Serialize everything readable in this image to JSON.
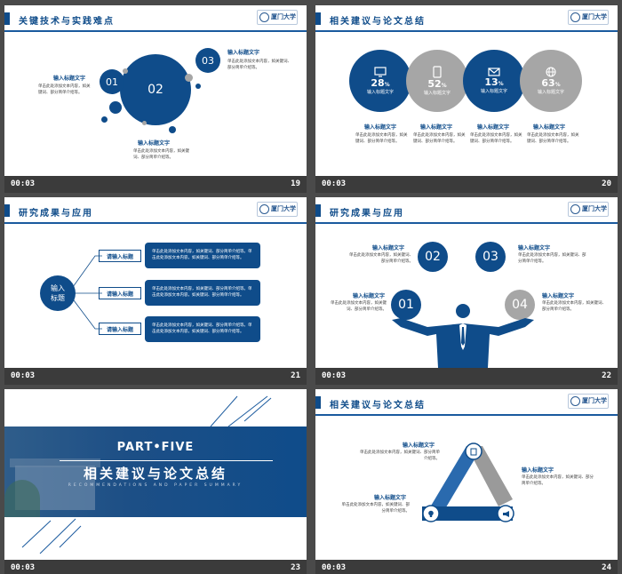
{
  "colors": {
    "primary": "#0f4c8a",
    "gray": "#a6a6a6",
    "dark_bar": "#3b3b3b"
  },
  "logo_text": "厦门大学",
  "slides": [
    {
      "title": "关键技术与实践难点",
      "time": "00:03",
      "number": "19",
      "circles": [
        "01",
        "02",
        "03"
      ],
      "labels": [
        "输入标题文字",
        "输入标题文字",
        "输入标题文字"
      ],
      "descs": [
        "单击此处添加文本内容，如关键词、部分简单介绍等。",
        "单击此处添加文本内容，如关键词、部分简单介绍等。",
        "单击此处添加文本内容，如关键词、部分简单介绍等。"
      ]
    },
    {
      "title": "相关建议与论文总结",
      "time": "00:03",
      "number": "20",
      "items": [
        {
          "icon": "monitor-icon",
          "value": "28",
          "unit": "%",
          "label": "输入标题文字",
          "caption": "输入标题文字",
          "desc": "单击此处添加文本内容，如关键词、部分简单介绍等。"
        },
        {
          "icon": "phone-icon",
          "value": "52",
          "unit": "%",
          "label": "输入标题文字",
          "caption": "输入标题文字",
          "desc": "单击此处添加文本内容，如关键词、部分简单介绍等。"
        },
        {
          "icon": "mail-icon",
          "value": "13",
          "unit": "%",
          "label": "输入标题文字",
          "caption": "输入标题文字",
          "desc": "单击此处添加文本内容，如关键词、部分简单介绍等。"
        },
        {
          "icon": "globe-icon",
          "value": "63",
          "unit": "%",
          "label": "输入标题文字",
          "caption": "输入标题文字",
          "desc": "单击此处添加文本内容，如关键词、部分简单介绍等。"
        }
      ]
    },
    {
      "title": "研究成果与应用",
      "time": "00:03",
      "number": "21",
      "center": "输入\n标题",
      "rows": [
        {
          "tag": "请输入标题",
          "text": "单击此处添加文本内容，如关键词、部分简单介绍等。单击此处添加文本内容，如关键词、部分简单介绍等。"
        },
        {
          "tag": "请输入标题",
          "text": "单击此处添加文本内容，如关键词、部分简单介绍等。单击此处添加文本内容，如关键词、部分简单介绍等。"
        },
        {
          "tag": "请输入标题",
          "text": "单击此处添加文本内容，如关键词、部分简单介绍等。单击此处添加文本内容，如关键词、部分简单介绍等。"
        }
      ]
    },
    {
      "title": "研究成果与应用",
      "time": "00:03",
      "number": "22",
      "circles": [
        "02",
        "03",
        "01",
        "04"
      ],
      "labels": [
        "输入标题文字",
        "输入标题文字",
        "输入标题文字",
        "输入标题文字"
      ],
      "descs": [
        "单击此处添加文本内容，如关键词、部分简单介绍等。",
        "单击此处添加文本内容，如关键词、部分简单介绍等。",
        "单击此处添加文本内容，如关键词、部分简单介绍等。",
        "单击此处添加文本内容，如关键词、部分简单介绍等。"
      ]
    },
    {
      "time": "00:03",
      "number": "23",
      "part": "PART•FIVE",
      "title": "相关建议与论文总结",
      "subtitle": "RECOMMENDATIONS AND PAPER SUMMARY"
    },
    {
      "title": "相关建议与论文总结",
      "time": "00:03",
      "number": "24",
      "labels": [
        "输入标题文字",
        "输入标题文字",
        "输入标题文字"
      ],
      "descs": [
        "单击此处添加文本内容，如关键词、部分简单介绍等。",
        "单击此处添加文本内容，如关键词、部分简单介绍等。",
        "单击此处添加文本内容，如关键词、部分简单介绍等。"
      ]
    }
  ]
}
